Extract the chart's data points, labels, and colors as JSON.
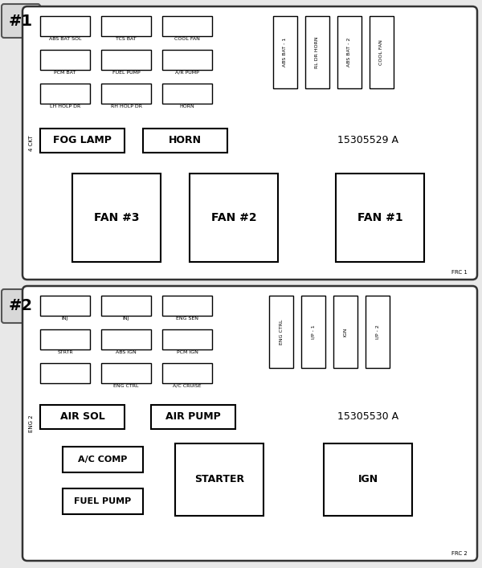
{
  "bg_color": "#e8e8e8",
  "panel_bg": "#ffffff",
  "box1": {
    "label": "#1",
    "part_number": "15305529 A",
    "frc": "FRC 1",
    "sideways_label": "4 CKT",
    "small_fuses": [
      {
        "label": "ABS BAT SOL",
        "row": 0,
        "col": 0
      },
      {
        "label": "TCS BAT",
        "row": 0,
        "col": 1
      },
      {
        "label": "COOL FAN",
        "row": 0,
        "col": 2
      },
      {
        "label": "PCM BAT",
        "row": 1,
        "col": 0
      },
      {
        "label": "FUEL PUMP",
        "row": 1,
        "col": 1
      },
      {
        "label": "A/R PUMP",
        "row": 1,
        "col": 2
      },
      {
        "label": "LH HOLP DR",
        "row": 2,
        "col": 0
      },
      {
        "label": "RH HOLP DR",
        "row": 2,
        "col": 1
      },
      {
        "label": "HORN",
        "row": 2,
        "col": 2
      }
    ],
    "medium_fuses": [
      {
        "label": "FOG LAMP"
      },
      {
        "label": "HORN"
      }
    ],
    "tall_fuses": [
      {
        "label": "ABS BAT - 1"
      },
      {
        "label": "RL DR HORN"
      },
      {
        "label": "ABS BAT - 2"
      },
      {
        "label": "COOL FAN"
      }
    ],
    "large_fuses": [
      {
        "label": "FAN #3"
      },
      {
        "label": "FAN #2"
      },
      {
        "label": "FAN #1"
      }
    ]
  },
  "box2": {
    "label": "#2",
    "part_number": "15305530 A",
    "frc": "FRC 2",
    "sideways_label": "ENG 2",
    "small_fuses": [
      {
        "label": "INJ",
        "row": 0,
        "col": 0
      },
      {
        "label": "INJ",
        "row": 0,
        "col": 1
      },
      {
        "label": "ENG SEN",
        "row": 0,
        "col": 2
      },
      {
        "label": "STRTR",
        "row": 1,
        "col": 0
      },
      {
        "label": "ABS IGN",
        "row": 1,
        "col": 1
      },
      {
        "label": "PCM IGN",
        "row": 1,
        "col": 2
      },
      {
        "label": "",
        "row": 2,
        "col": 0
      },
      {
        "label": "ENG CTRL",
        "row": 2,
        "col": 1
      },
      {
        "label": "A/C CRUISE",
        "row": 2,
        "col": 2
      }
    ],
    "medium_fuses": [
      {
        "label": "AIR SOL"
      },
      {
        "label": "AIR PUMP"
      }
    ],
    "tall_fuses": [
      {
        "label": "ENG CTRL"
      },
      {
        "label": "I/P - 1"
      },
      {
        "label": "IGN"
      },
      {
        "label": "I/P - 2"
      }
    ]
  }
}
